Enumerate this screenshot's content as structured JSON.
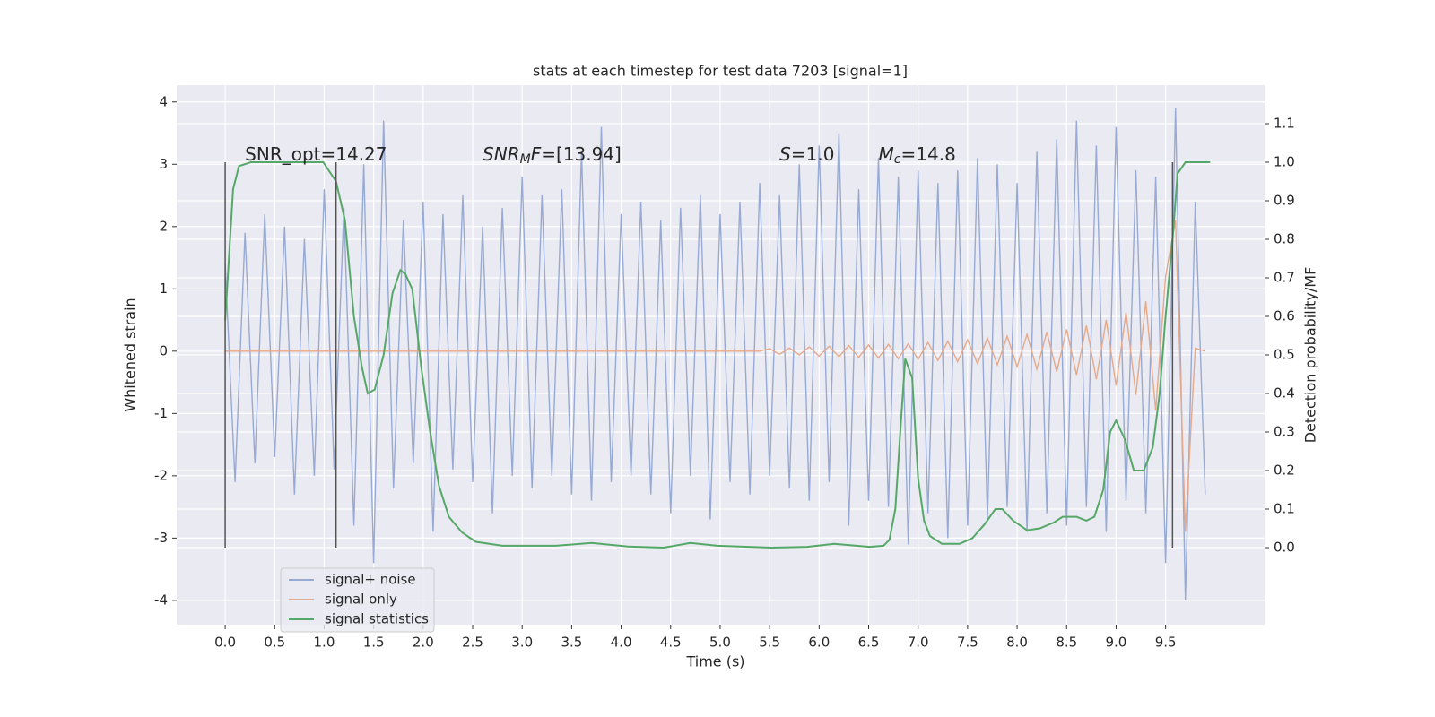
{
  "chart_data": {
    "type": "line",
    "title": "stats at each timestep for test data 7203 [signal=1]",
    "xlabel": "Time (s)",
    "ylabel": "Whitened strain",
    "y2label": "Detection probability/MF",
    "xlim": [
      -0.49,
      10.5
    ],
    "ylim": [
      -4.39,
      4.27
    ],
    "y2lim": [
      -0.2,
      1.2
    ],
    "xticks": [
      {
        "value": 0,
        "label": "0.0"
      },
      0.5,
      {
        "value": 1,
        "label": "1.0"
      },
      1.5,
      {
        "value": 2,
        "label": "2.0"
      },
      2.5,
      {
        "value": 3,
        "label": "3.0"
      },
      3.5,
      {
        "value": 4,
        "label": "4.0"
      },
      4.5,
      {
        "value": 5,
        "label": "5.0"
      },
      5.5,
      {
        "value": 6,
        "label": "6.0"
      },
      6.5,
      {
        "value": 7,
        "label": "7.0"
      },
      7.5,
      {
        "value": 8,
        "label": "8.0"
      },
      8.5,
      {
        "value": 9,
        "label": "9.0"
      },
      9.5
    ],
    "yticks": [
      -4,
      -3,
      -2,
      -1,
      0,
      1,
      2,
      3,
      4
    ],
    "y2ticks": [
      {
        "value": 0,
        "label": "0.0"
      },
      0.1,
      0.2,
      0.3,
      0.4,
      0.5,
      0.6,
      0.7,
      0.8,
      0.9,
      {
        "value": 1,
        "label": "1.0"
      },
      1.1
    ],
    "grid": true,
    "legend": "lower left",
    "series": [
      {
        "name": "signal+ noise",
        "color": "#97aad3",
        "x": [
          0.0,
          0.1,
          0.2,
          0.3,
          0.4,
          0.5,
          0.6,
          0.7,
          0.8,
          0.9,
          1.0,
          1.1,
          1.2,
          1.3,
          1.4,
          1.5,
          1.6,
          1.7,
          1.8,
          1.9,
          2.0,
          2.1,
          2.2,
          2.3,
          2.4,
          2.5,
          2.6,
          2.7,
          2.8,
          2.9,
          3.0,
          3.1,
          3.2,
          3.3,
          3.4,
          3.5,
          3.6,
          3.7,
          3.8,
          3.9,
          4.0,
          4.1,
          4.2,
          4.3,
          4.4,
          4.5,
          4.6,
          4.7,
          4.8,
          4.9,
          5.0,
          5.1,
          5.2,
          5.3,
          5.4,
          5.5,
          5.6,
          5.7,
          5.8,
          5.9,
          6.0,
          6.1,
          6.2,
          6.3,
          6.4,
          6.5,
          6.6,
          6.7,
          6.8,
          6.9,
          7.0,
          7.1,
          7.2,
          7.3,
          7.4,
          7.5,
          7.6,
          7.7,
          7.8,
          7.9,
          8.0,
          8.1,
          8.2,
          8.3,
          8.4,
          8.5,
          8.6,
          8.7,
          8.8,
          8.9,
          9.0,
          9.1,
          9.2,
          9.3,
          9.4,
          9.5,
          9.6,
          9.7,
          9.8,
          9.9
        ],
        "values": [
          1.4,
          -2.1,
          1.9,
          -1.8,
          2.2,
          -1.7,
          2.0,
          -2.3,
          1.8,
          -2.0,
          2.6,
          -1.9,
          2.3,
          -2.8,
          3.0,
          -3.4,
          3.7,
          -2.2,
          2.1,
          -1.8,
          2.4,
          -2.9,
          2.2,
          -1.9,
          2.5,
          -2.1,
          2.0,
          -2.6,
          2.3,
          -2.0,
          2.8,
          -2.2,
          2.5,
          -2.0,
          2.6,
          -2.3,
          3.2,
          -2.4,
          3.6,
          -2.1,
          2.2,
          -2.0,
          2.4,
          -2.3,
          2.1,
          -2.6,
          2.3,
          -2.0,
          2.5,
          -2.7,
          2.2,
          -2.1,
          2.4,
          -2.3,
          2.7,
          -2.0,
          2.5,
          -2.2,
          3.0,
          -2.4,
          3.3,
          -2.1,
          3.5,
          -2.8,
          2.6,
          -2.4,
          3.1,
          -2.5,
          2.8,
          -3.1,
          2.9,
          -2.6,
          2.7,
          -3.0,
          2.9,
          -2.8,
          3.1,
          -2.7,
          3.0,
          -2.5,
          2.7,
          -2.9,
          3.2,
          -2.6,
          3.4,
          -2.8,
          3.7,
          -2.5,
          3.3,
          -2.9,
          3.6,
          -2.4,
          2.9,
          -2.6,
          2.8,
          -3.4,
          3.9,
          -4.0,
          2.4,
          -2.3
        ]
      },
      {
        "name": "signal only",
        "color": "#e6a98a",
        "x": [
          0.0,
          0.1,
          0.2,
          0.3,
          0.4,
          0.5,
          0.6,
          0.7,
          0.8,
          0.9,
          1.0,
          1.1,
          1.2,
          1.3,
          1.4,
          1.5,
          1.6,
          1.7,
          1.8,
          1.9,
          2.0,
          2.1,
          2.2,
          2.3,
          2.4,
          2.5,
          2.6,
          2.7,
          2.8,
          2.9,
          3.0,
          3.1,
          3.2,
          3.3,
          3.4,
          3.5,
          3.6,
          3.7,
          3.8,
          3.9,
          4.0,
          4.1,
          4.2,
          4.3,
          4.4,
          4.5,
          4.6,
          4.7,
          4.8,
          4.9,
          5.0,
          5.1,
          5.2,
          5.3,
          5.4,
          5.5,
          5.6,
          5.7,
          5.8,
          5.9,
          6.0,
          6.1,
          6.2,
          6.3,
          6.4,
          6.5,
          6.6,
          6.7,
          6.8,
          6.9,
          7.0,
          7.1,
          7.2,
          7.3,
          7.4,
          7.5,
          7.6,
          7.7,
          7.8,
          7.9,
          8.0,
          8.1,
          8.2,
          8.3,
          8.4,
          8.5,
          8.6,
          8.7,
          8.8,
          8.9,
          9.0,
          9.1,
          9.2,
          9.3,
          9.4,
          9.5,
          9.6,
          9.7,
          9.8,
          9.9
        ],
        "values": [
          0,
          0,
          0,
          0,
          0,
          0,
          0,
          0,
          0,
          0,
          0,
          0,
          0,
          0,
          0,
          0,
          0,
          0,
          0,
          0,
          0,
          0,
          0,
          0,
          0,
          0,
          0,
          0,
          0,
          0,
          0,
          0,
          0,
          0,
          0,
          0,
          0,
          0,
          0,
          0,
          0,
          0,
          0,
          0,
          0,
          0,
          0,
          0,
          0,
          0,
          0,
          0,
          0,
          0,
          0,
          0.04,
          -0.05,
          0.05,
          -0.06,
          0.07,
          -0.08,
          0.08,
          -0.09,
          0.09,
          -0.1,
          0.1,
          -0.11,
          0.11,
          -0.12,
          0.12,
          -0.13,
          0.14,
          -0.15,
          0.16,
          -0.17,
          0.18,
          -0.2,
          0.21,
          -0.22,
          0.24,
          -0.25,
          0.27,
          -0.29,
          0.31,
          -0.33,
          0.35,
          -0.38,
          0.41,
          -0.45,
          0.5,
          -0.55,
          0.62,
          -0.7,
          0.8,
          -0.95,
          1.2,
          2.1,
          -2.9,
          0.05,
          0
        ]
      },
      {
        "name": "signal statistics",
        "color": "#55a868",
        "axis": "y2",
        "x": [
          0,
          0.08,
          0.14,
          0.26,
          0.99,
          1.12,
          1.21,
          1.3,
          1.38,
          1.44,
          1.51,
          1.6,
          1.69,
          1.77,
          1.82,
          1.89,
          1.98,
          2.07,
          2.16,
          2.26,
          2.39,
          2.53,
          2.8,
          3.34,
          3.7,
          4.07,
          4.43,
          4.7,
          4.97,
          5.52,
          5.88,
          6.15,
          6.51,
          6.65,
          6.71,
          6.77,
          6.82,
          6.87,
          6.94,
          7.0,
          7.06,
          7.12,
          7.24,
          7.42,
          7.55,
          7.67,
          7.78,
          7.85,
          7.96,
          8.1,
          8.23,
          8.37,
          8.46,
          8.6,
          8.7,
          8.78,
          8.87,
          8.94,
          9.0,
          9.09,
          9.18,
          9.28,
          9.37,
          9.44,
          9.5,
          9.57,
          9.62,
          9.7,
          9.86,
          9.95
        ],
        "values": [
          0.59,
          0.93,
          0.99,
          1.0,
          1.0,
          0.95,
          0.85,
          0.6,
          0.47,
          0.4,
          0.41,
          0.5,
          0.66,
          0.72,
          0.71,
          0.67,
          0.47,
          0.3,
          0.16,
          0.08,
          0.04,
          0.015,
          0.005,
          0.005,
          0.012,
          0.003,
          0.0,
          0.012,
          0.005,
          0.0,
          0.002,
          0.01,
          0.002,
          0.005,
          0.02,
          0.1,
          0.3,
          0.49,
          0.44,
          0.18,
          0.07,
          0.03,
          0.01,
          0.01,
          0.025,
          0.06,
          0.1,
          0.1,
          0.07,
          0.045,
          0.05,
          0.065,
          0.08,
          0.08,
          0.07,
          0.08,
          0.15,
          0.3,
          0.33,
          0.28,
          0.2,
          0.2,
          0.26,
          0.4,
          0.6,
          0.8,
          0.97,
          1.0,
          1.0,
          1.0
        ]
      }
    ],
    "vlines": {
      "color": "#555555",
      "x": [
        0,
        1.12,
        9.57
      ],
      "y2range": [
        0,
        1
      ]
    },
    "annotations": [
      {
        "x": 0.2,
        "y": 3.15,
        "parts": [
          {
            "text": "SNR_opt=14.27"
          }
        ]
      },
      {
        "x": 2.6,
        "y": 3.15,
        "parts": [
          {
            "text": "SNR",
            "style": "italic"
          },
          {
            "text": "M",
            "style": "sub"
          },
          {
            "text": "F",
            "style": "italic"
          },
          {
            "text": "=[13.94]"
          }
        ]
      },
      {
        "x": 5.6,
        "y": 3.15,
        "parts": [
          {
            "text": "S",
            "style": "italic"
          },
          {
            "text": "=1.0"
          }
        ]
      },
      {
        "x": 6.6,
        "y": 3.15,
        "parts": [
          {
            "text": "M",
            "style": "italic"
          },
          {
            "text": "c",
            "style": "sub"
          },
          {
            "text": "=14.8"
          }
        ]
      }
    ]
  }
}
